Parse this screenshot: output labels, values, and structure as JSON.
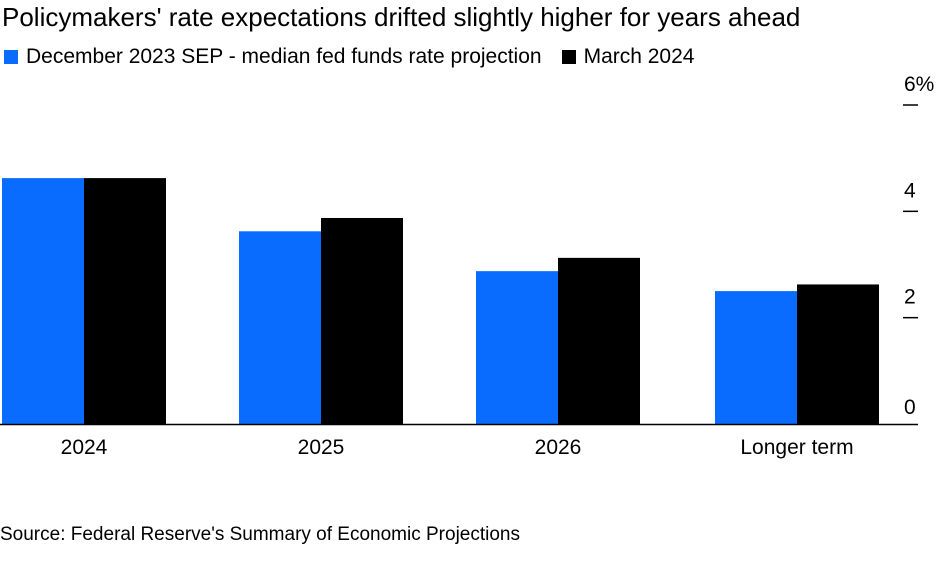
{
  "chart_data": {
    "type": "bar",
    "title": "Policymakers' rate expectations drifted slightly higher for years ahead",
    "categories": [
      "2024",
      "2025",
      "2026",
      "Longer term"
    ],
    "series": [
      {
        "name": "December 2023 SEP - median fed funds rate projection",
        "color": "#0a6cff",
        "values": [
          4.625,
          3.625,
          2.875,
          2.5
        ]
      },
      {
        "name": "March 2024",
        "color": "#000000",
        "values": [
          4.625,
          3.875,
          3.125,
          2.625
        ]
      }
    ],
    "y_ticks": [
      {
        "value": 0,
        "label": "0"
      },
      {
        "value": 2,
        "label": "2"
      },
      {
        "value": 4,
        "label": "4"
      },
      {
        "value": 6,
        "label": "6%"
      }
    ],
    "ylim": [
      0,
      6
    ],
    "y_axis_side": "right",
    "legend_position": "top-left",
    "grid": false
  },
  "source": "Source: Federal Reserve's Summary of Economic Projections"
}
